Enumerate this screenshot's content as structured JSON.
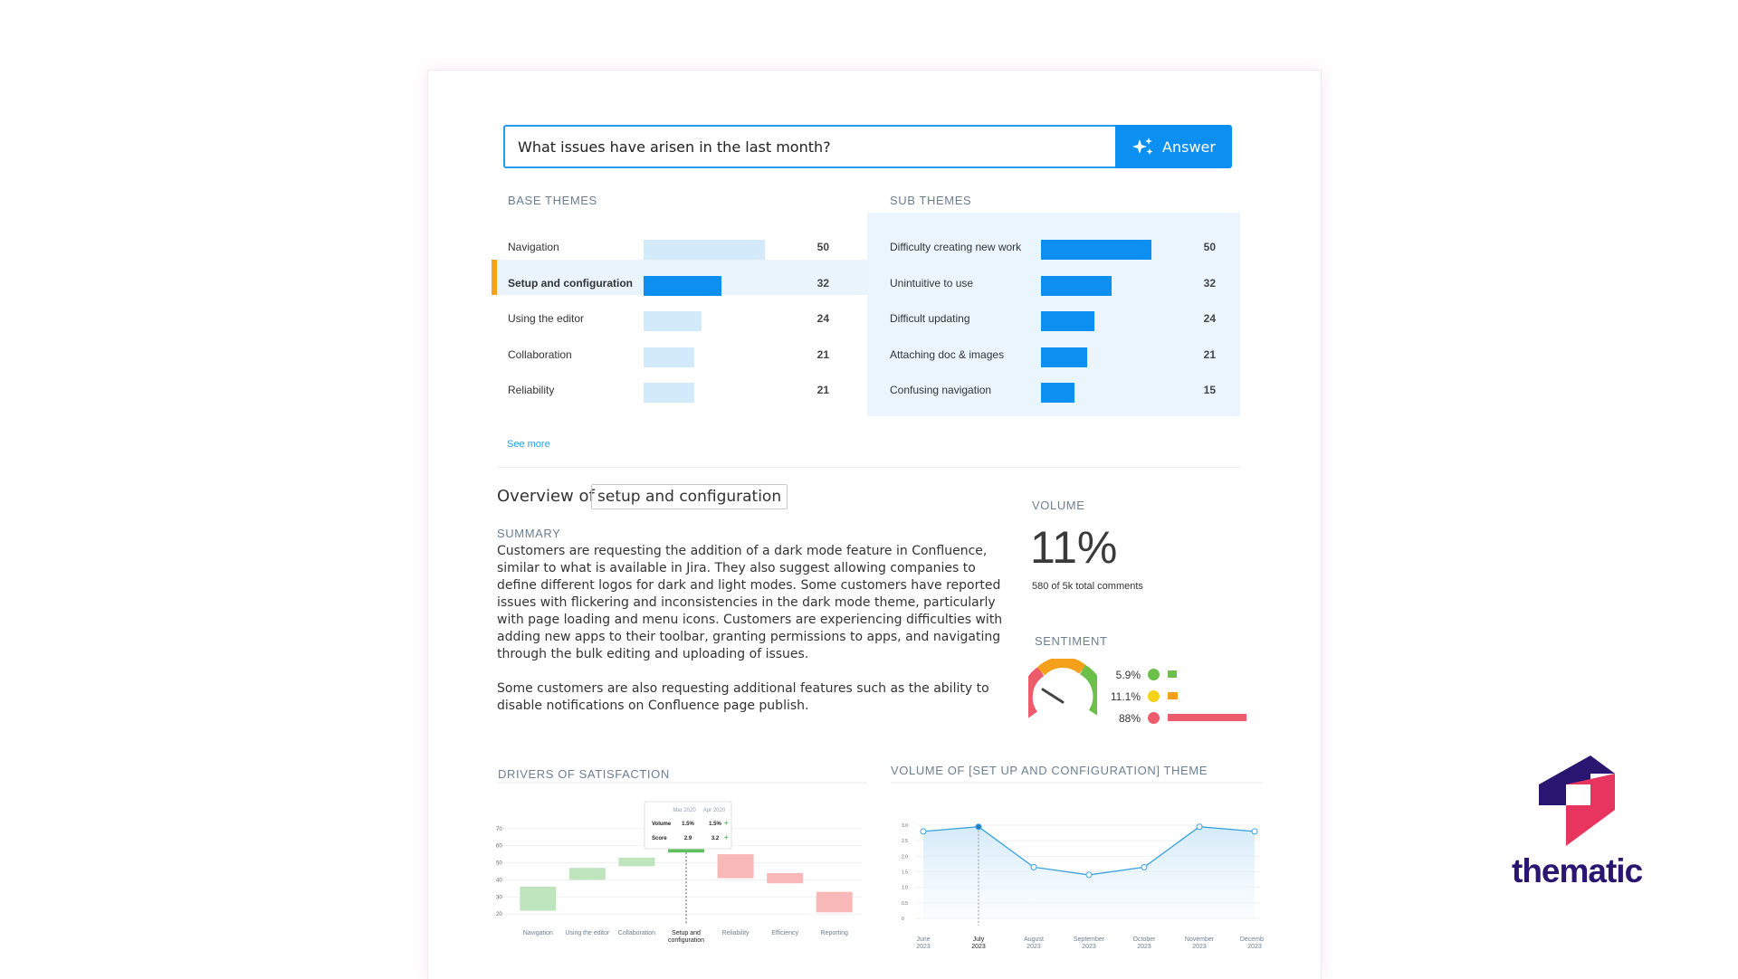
{
  "search": {
    "value": "What issues have arisen in the last month?",
    "button_label": "Answer",
    "button_icon": "sparkle-icon"
  },
  "base_themes": {
    "label": "BASE THEMES",
    "items": [
      {
        "name": "Navigation",
        "count": 50,
        "selected": false
      },
      {
        "name": "Setup and configuration",
        "count": 32,
        "selected": true
      },
      {
        "name": "Using the editor",
        "count": 24,
        "selected": false
      },
      {
        "name": "Collaboration",
        "count": 21,
        "selected": false
      },
      {
        "name": "Reliability",
        "count": 21,
        "selected": false
      }
    ],
    "see_more": "See more"
  },
  "sub_themes": {
    "label": "SUB THEMES",
    "items": [
      {
        "name": "Difficulty creating new work",
        "count": 50
      },
      {
        "name": "Unintuitive to use",
        "count": 32
      },
      {
        "name": "Difficult updating",
        "count": 24
      },
      {
        "name": "Attaching doc & images",
        "count": 21
      },
      {
        "name": "Confusing navigation",
        "count": 15
      }
    ]
  },
  "overview": {
    "prefix": "Overview of",
    "theme": "setup and configuration",
    "summary_label": "SUMMARY",
    "summary_p1": "Customers are requesting the addition of a dark mode feature in Confluence, similar to what is available in Jira. They also suggest allowing companies to define different logos for dark and light modes. Some customers have reported issues with flickering and inconsistencies in the dark mode theme, particularly with page loading and menu icons. Customers are experiencing difficulties with adding new apps to their toolbar, granting permissions to apps, and navigating through the bulk editing and uploading of issues.",
    "summary_p2": "Some customers are also requesting additional features such as the ability to disable notifications on Confluence page publish."
  },
  "volume": {
    "label": "VOLUME",
    "value": "11%",
    "sub": "580 of 5k total comments"
  },
  "sentiment": {
    "label": "SENTIMENT",
    "rows": [
      {
        "pct": "5.9%",
        "value": 5.9,
        "color": "#6cc04a"
      },
      {
        "pct": "11.1%",
        "value": 11.1,
        "color": "#f5a01a"
      },
      {
        "pct": "88%",
        "value": 88,
        "color": "#ee5c6c"
      }
    ]
  },
  "colors": {
    "primary": "#0b8ff0",
    "light_bar": "#d2eaf9",
    "accent": "#f6a21c",
    "brand": "#2a1570",
    "brand_pink": "#e8355f"
  },
  "chart_data": [
    {
      "type": "bar",
      "title": "DRIVERS OF SATISFACTION",
      "categories": [
        "Navigation",
        "Using the editor",
        "Collaboration",
        "Setup and configuration",
        "Reliability",
        "Efficiency",
        "Reporting"
      ],
      "ranges": [
        [
          22,
          36
        ],
        [
          40,
          47
        ],
        [
          48,
          53
        ],
        [
          56,
          62
        ],
        [
          41,
          55
        ],
        [
          38,
          44
        ],
        [
          21,
          33
        ]
      ],
      "colors": [
        "#bfe5bf",
        "#bfe5bf",
        "#bfe5bf",
        "#5fbf5f",
        "#f9b8b8",
        "#f9b8b8",
        "#f9b8b8"
      ],
      "y_ticks": [
        20,
        30,
        40,
        50,
        60,
        70
      ],
      "ylim": [
        18,
        72
      ],
      "tooltip": {
        "headers": [
          "Mar 2020",
          "Apr 2020"
        ],
        "rows": [
          {
            "label": "Volume",
            "a": "1.5%",
            "b": "1.5%"
          },
          {
            "label": "Score",
            "a": "2.9",
            "b": "3.2"
          }
        ]
      }
    },
    {
      "type": "area",
      "title": "VOLUME OF [SET UP AND CONFIGURATION] THEME",
      "x": [
        "June 2023",
        "July 2023",
        "August 2023",
        "September 2023",
        "October 2023",
        "November 2023",
        "December 2023"
      ],
      "x_month": [
        "June",
        "July",
        "August",
        "September",
        "October",
        "November",
        "December"
      ],
      "x_year": [
        "2023",
        "2023",
        "2023",
        "2023",
        "2023",
        "2023",
        "2023"
      ],
      "values": [
        2.8,
        2.95,
        1.65,
        1.4,
        1.65,
        2.95,
        2.8
      ],
      "y_ticks": [
        "0",
        "0.5",
        "1.0",
        "1.5",
        "2.0",
        "2.5",
        "3.0"
      ],
      "ylim": [
        0,
        3
      ],
      "highlight_index": 1
    }
  ],
  "brand": {
    "name": "thematic"
  }
}
